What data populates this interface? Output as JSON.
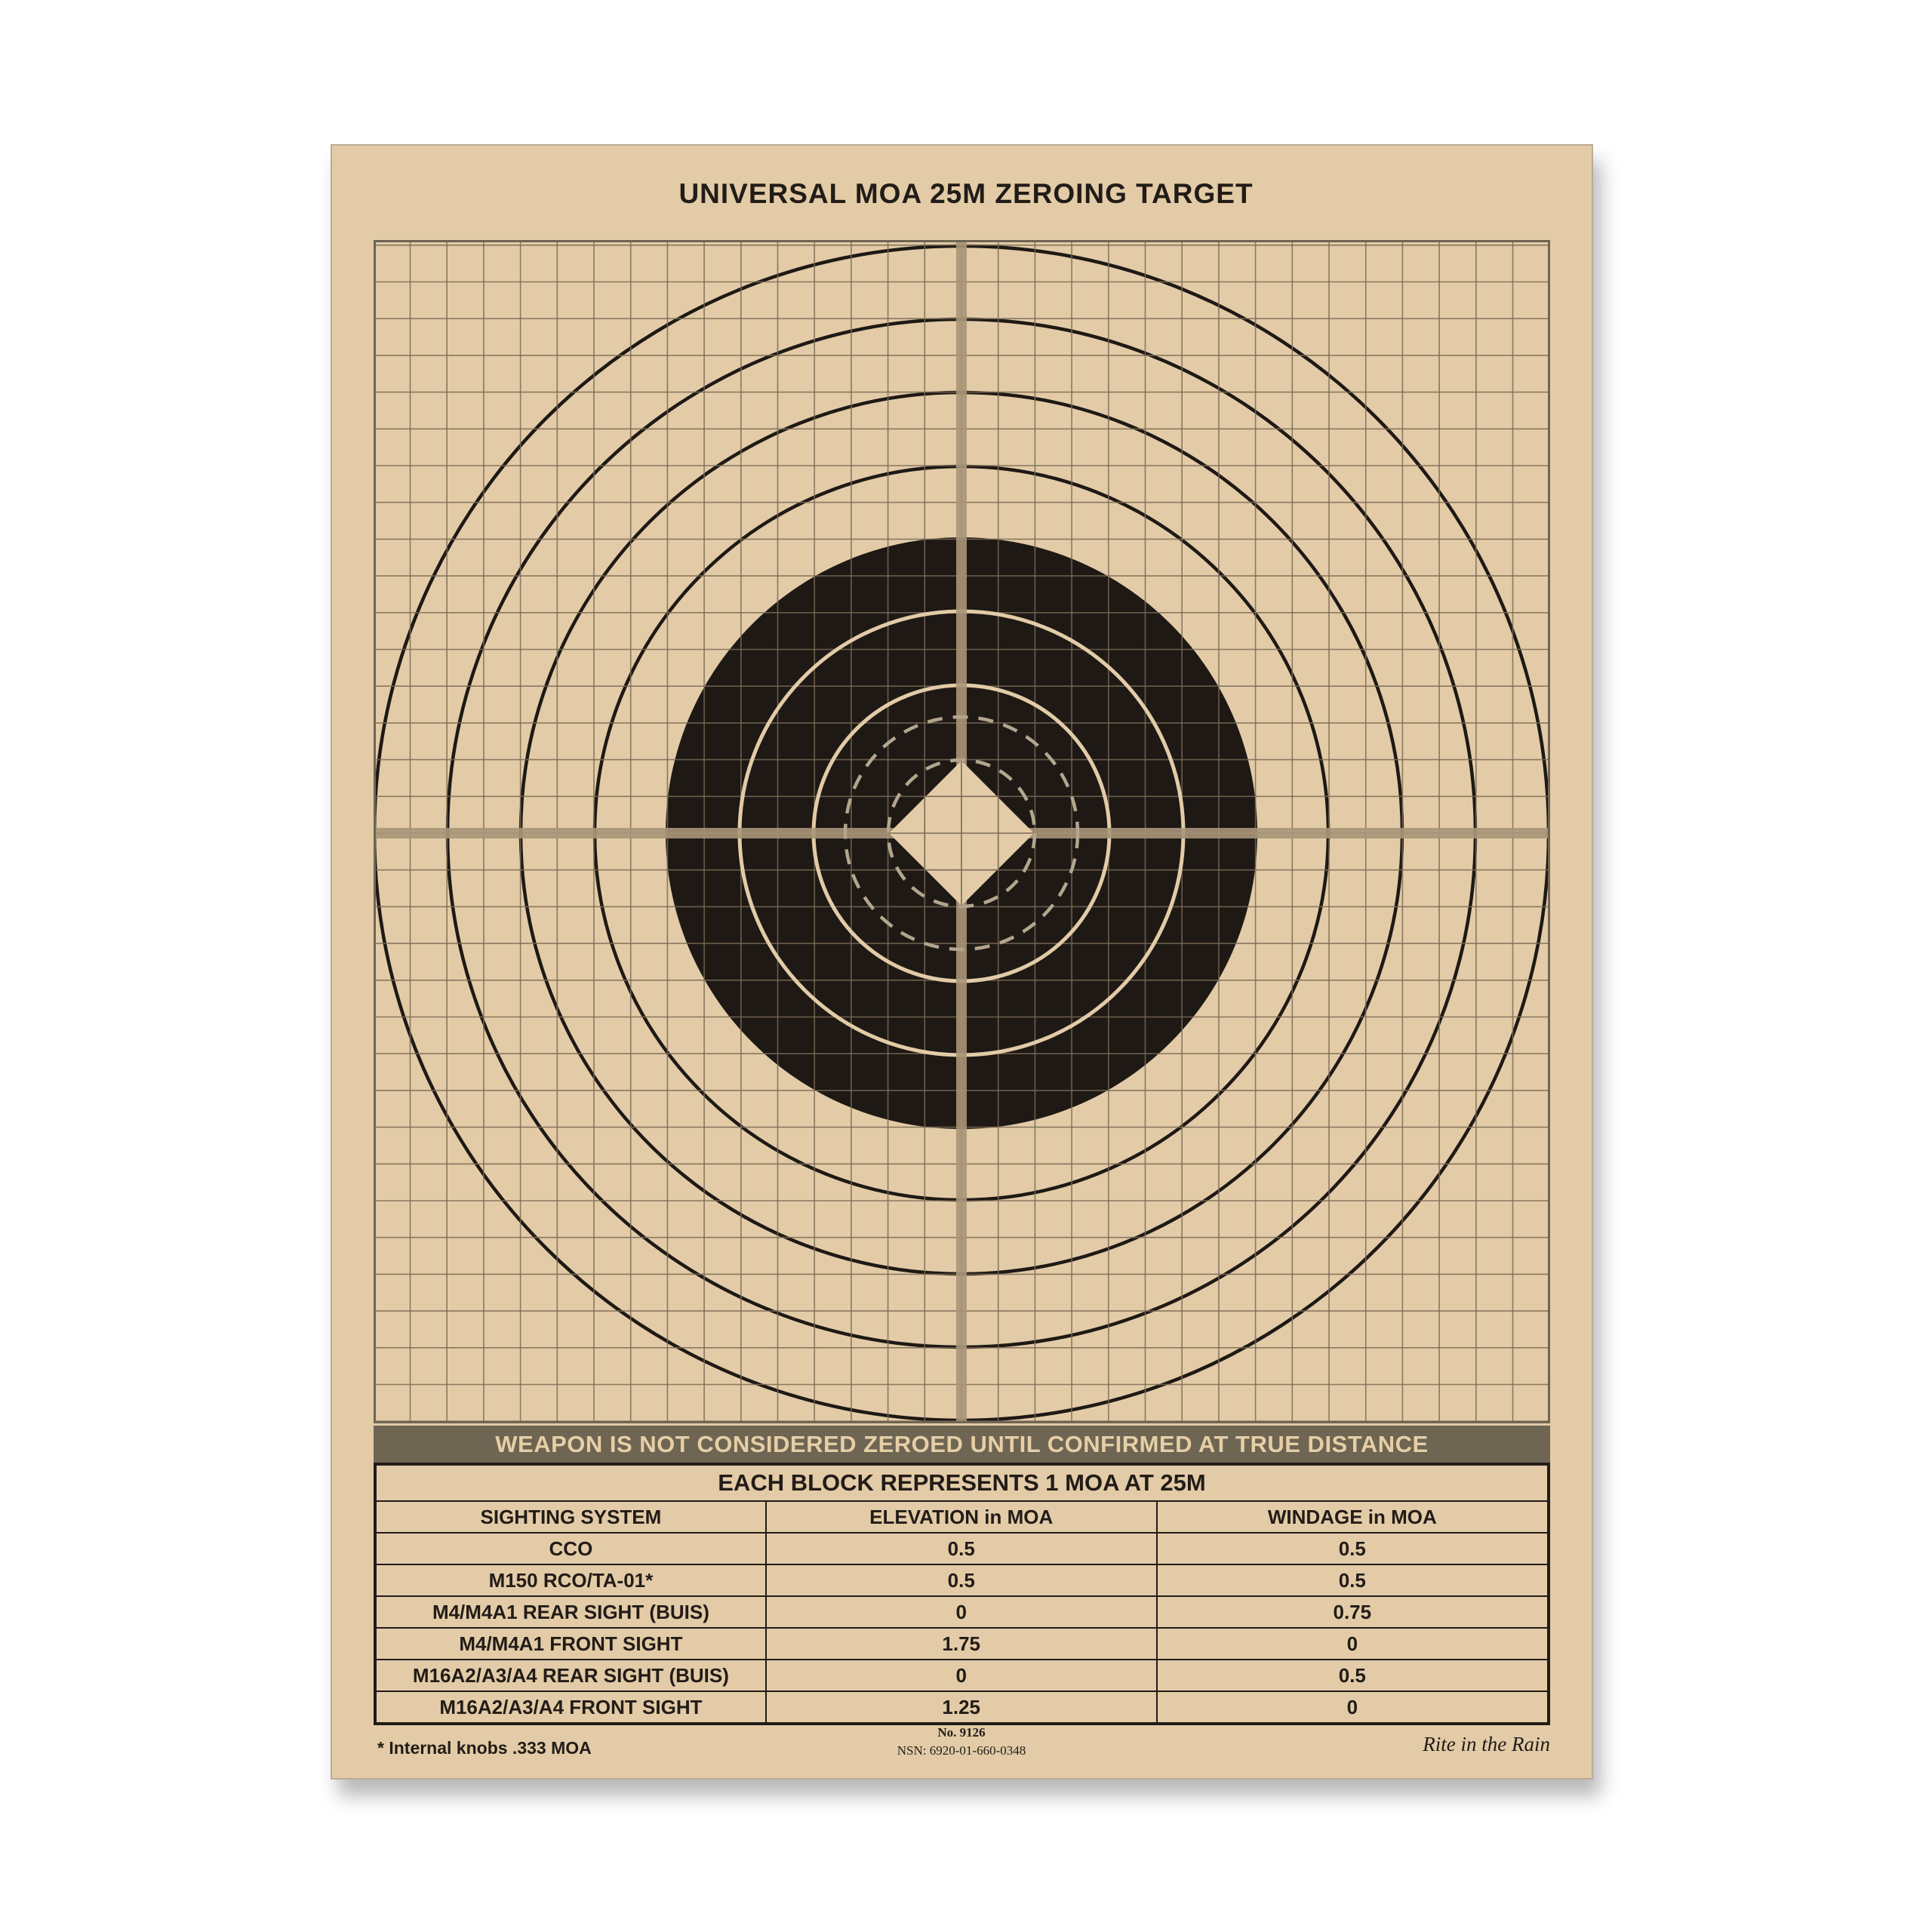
{
  "title": "UNIVERSAL MOA 25M ZEROING TARGET",
  "warning": "WEAPON IS NOT CONSIDERED ZEROED UNTIL CONFIRMED AT TRUE DISTANCE",
  "table": {
    "caption": "EACH BLOCK REPRESENTS 1 MOA AT 25M",
    "headers": [
      "SIGHTING SYSTEM",
      "ELEVATION in MOA",
      "WINDAGE in MOA"
    ],
    "rows": [
      [
        "CCO",
        "0.5",
        "0.5"
      ],
      [
        "M150 RCO/TA-01*",
        "0.5",
        "0.5"
      ],
      [
        "M4/M4A1 REAR SIGHT (BUIS)",
        "0",
        "0.75"
      ],
      [
        "M4/M4A1 FRONT SIGHT",
        "1.75",
        "0"
      ],
      [
        "M16A2/A3/A4 REAR SIGHT (BUIS)",
        "0",
        "0.5"
      ],
      [
        "M16A2/A3/A4 FRONT SIGHT",
        "1.25",
        "0"
      ]
    ]
  },
  "footnote": "* Internal knobs .333 MOA",
  "product_number": "No. 9126",
  "nsn": "NSN: 6920-01-660-0348",
  "brand_logo": "Rite in the Rain",
  "colors": {
    "paper": "#e2cba6",
    "ink": "#1e1915",
    "grid": "#7a6a55",
    "crosshair": "#a89578",
    "band": "#6f6553",
    "dash": "#b3a68e"
  }
}
